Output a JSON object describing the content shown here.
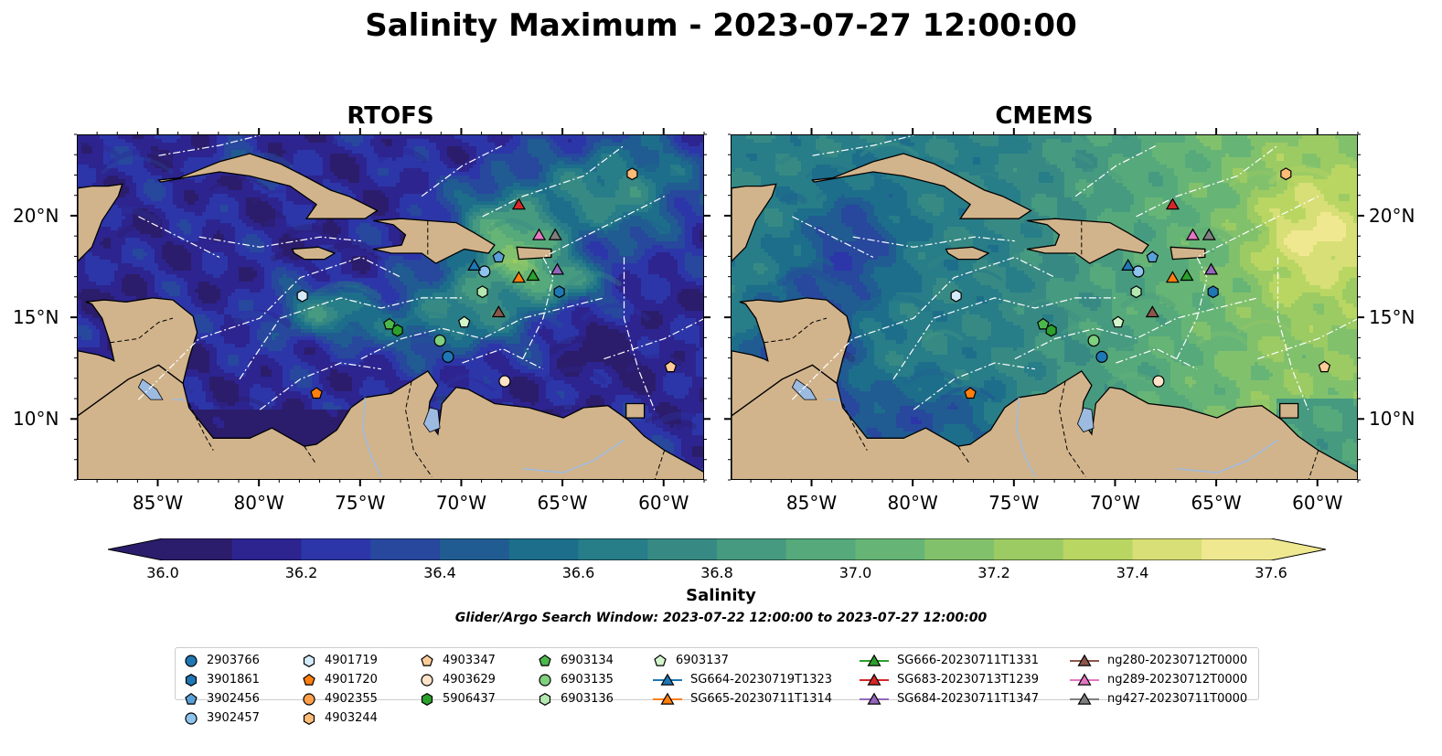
{
  "title": "Salinity Maximum - 2023-07-27 12:00:00",
  "panels": [
    {
      "title": "RTOFS",
      "field": "rtofs"
    },
    {
      "title": "CMEMS",
      "field": "cmems"
    }
  ],
  "map": {
    "lon_range": [
      -89,
      -58
    ],
    "lat_range": [
      7,
      24
    ],
    "lon_ticks": [
      "85°W",
      "80°W",
      "75°W",
      "70°W",
      "65°W",
      "60°W"
    ],
    "lat_ticks": [
      "20°N",
      "15°N",
      "10°N"
    ],
    "colors": {
      "land": "#d2b48c",
      "lakes_rivers": "#9dbbe0",
      "coastline": "#000000",
      "eez_lines": "#ffffff"
    }
  },
  "colorbar": {
    "label": "Salinity",
    "min": 36.0,
    "max": 37.6,
    "step": 0.1,
    "tick_labels": [
      "36.0",
      "36.2",
      "36.4",
      "36.6",
      "36.8",
      "37.0",
      "37.2",
      "37.4",
      "37.6"
    ],
    "colormap": "haline",
    "extend": "both"
  },
  "search_window": "Glider/Argo Search Window: 2023-07-22 12:00:00 to 2023-07-27 12:00:00",
  "legend_items": [
    {
      "label": "2903766",
      "marker": "circle",
      "color": "#1f77b4",
      "col": 0
    },
    {
      "label": "3901861",
      "marker": "hexagon",
      "color": "#1f77b4",
      "col": 0
    },
    {
      "label": "3902456",
      "marker": "pentagon",
      "color": "#5aa0d8",
      "col": 0
    },
    {
      "label": "3902457",
      "marker": "circle",
      "color": "#8cc4ee",
      "col": 0
    },
    {
      "label": "4901719",
      "marker": "hexagon",
      "color": "#d6ebfa",
      "col": 1
    },
    {
      "label": "4901720",
      "marker": "pentagon",
      "color": "#ff7f0e",
      "col": 1
    },
    {
      "label": "4902355",
      "marker": "circle",
      "color": "#ff9f4a",
      "col": 1
    },
    {
      "label": "4903244",
      "marker": "hexagon",
      "color": "#ffbb78",
      "col": 1
    },
    {
      "label": "4903347",
      "marker": "pentagon",
      "color": "#ffcc99",
      "col": 2
    },
    {
      "label": "4903629",
      "marker": "circle",
      "color": "#ffe3c8",
      "col": 2
    },
    {
      "label": "5906437",
      "marker": "hexagon",
      "color": "#2ca02c",
      "col": 2
    },
    {
      "label": "6903134",
      "marker": "pentagon",
      "color": "#4cb84c",
      "col": 3
    },
    {
      "label": "6903135",
      "marker": "circle",
      "color": "#7fd07f",
      "col": 3
    },
    {
      "label": "6903136",
      "marker": "hexagon",
      "color": "#b5e8b0",
      "col": 3
    },
    {
      "label": "6903137",
      "marker": "pentagon",
      "color": "#d4f5cc",
      "col": 4
    },
    {
      "label": "SG664-20230719T1323",
      "marker": "triangle",
      "color": "#1f77b4",
      "col": 4
    },
    {
      "label": "SG665-20230711T1314",
      "marker": "triangle",
      "color": "#ff7f0e",
      "col": 4
    },
    {
      "label": "SG666-20230711T1331",
      "marker": "triangle",
      "color": "#2ca02c",
      "col": 5
    },
    {
      "label": "SG683-20230713T1239",
      "marker": "triangle",
      "color": "#d62728",
      "col": 5
    },
    {
      "label": "SG684-20230711T1347",
      "marker": "triangle",
      "color": "#9467bd",
      "col": 5
    },
    {
      "label": "ng280-20230712T0000",
      "marker": "triangle",
      "color": "#8c564b",
      "col": 6
    },
    {
      "label": "ng289-20230712T0000",
      "marker": "triangle",
      "color": "#e377c2",
      "col": 6
    },
    {
      "label": "ng427-20230711T0000",
      "marker": "triangle",
      "color": "#7f7f7f",
      "col": 6
    }
  ],
  "observations": [
    {
      "id": "2903766",
      "lon": -70.7,
      "lat": 13.1
    },
    {
      "id": "3901861",
      "lon": -65.2,
      "lat": 16.3
    },
    {
      "id": "3902456",
      "lon": -68.2,
      "lat": 18.0
    },
    {
      "id": "3902457",
      "lon": -68.9,
      "lat": 17.3
    },
    {
      "id": "4901719",
      "lon": -77.9,
      "lat": 16.1
    },
    {
      "id": "4901720",
      "lon": -77.2,
      "lat": 11.3
    },
    {
      "id": "4903244",
      "lon": -61.6,
      "lat": 22.1
    },
    {
      "id": "4903347",
      "lon": -59.7,
      "lat": 12.6
    },
    {
      "id": "4903629",
      "lon": -67.9,
      "lat": 11.9
    },
    {
      "id": "5906437",
      "lon": -73.2,
      "lat": 14.4
    },
    {
      "id": "6903134",
      "lon": -73.6,
      "lat": 14.7
    },
    {
      "id": "6903135",
      "lon": -71.1,
      "lat": 13.9
    },
    {
      "id": "6903136",
      "lon": -69.0,
      "lat": 16.3
    },
    {
      "id": "6903137",
      "lon": -69.9,
      "lat": 14.8
    },
    {
      "id": "SG664-20230719T1323",
      "lon": -69.4,
      "lat": 17.6
    },
    {
      "id": "SG665-20230711T1314",
      "lon": -67.2,
      "lat": 17.0
    },
    {
      "id": "SG666-20230711T1331",
      "lon": -66.5,
      "lat": 17.1
    },
    {
      "id": "SG683-20230713T1239",
      "lon": -67.2,
      "lat": 20.6
    },
    {
      "id": "SG684-20230711T1347",
      "lon": -65.3,
      "lat": 17.4
    },
    {
      "id": "ng280-20230712T0000",
      "lon": -68.2,
      "lat": 15.3
    },
    {
      "id": "ng289-20230712T0000",
      "lon": -66.2,
      "lat": 19.1
    },
    {
      "id": "ng427-20230711T0000",
      "lon": -65.4,
      "lat": 19.1
    }
  ]
}
